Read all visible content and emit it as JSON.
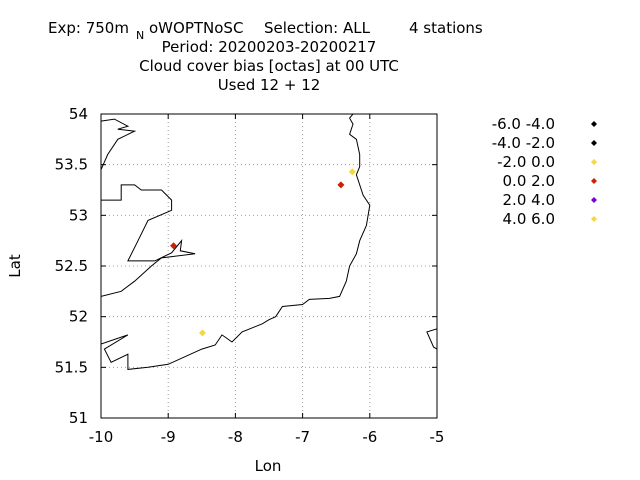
{
  "chart_data": {
    "type": "scatter",
    "title": {
      "exp_prefix": "Exp: 750m",
      "exp_subscript": "N",
      "exp_suffix": "oWOPTNoSC",
      "selection": "Selection: ALL",
      "stations": "4 stations",
      "period": "Period: 20200203-20200217",
      "variable": "Cloud cover bias [octas] at  00 UTC",
      "used": "Used  12 + 12"
    },
    "xlabel": "Lon",
    "ylabel": "Lat",
    "xlim": [
      -10,
      -5
    ],
    "ylim": [
      51,
      54
    ],
    "grid": true,
    "xticks": [
      -10,
      -9,
      -8,
      -7,
      -6,
      -5
    ],
    "xtick_labels": [
      "-10",
      "-9",
      "-8",
      "-7",
      "-6",
      "-5"
    ],
    "yticks": [
      51,
      51.5,
      52,
      52.5,
      53,
      53.5,
      54
    ],
    "ytick_labels": [
      "51",
      "51.5",
      "52",
      "52.5",
      "53",
      "53.5",
      "54"
    ],
    "legend_position": "right",
    "legend": [
      {
        "label": "-6.0 -4.0",
        "color": "#000000"
      },
      {
        "label": "-4.0 -2.0",
        "color": "#000000"
      },
      {
        "label": "-2.0 0.0",
        "color": "#f5d742"
      },
      {
        "label": "0.0 2.0",
        "color": "#cc2200"
      },
      {
        "label": "2.0 4.0",
        "color": "#7b00d4"
      },
      {
        "label": "4.0 6.0",
        "color": "#f5d742"
      }
    ],
    "points": [
      {
        "lon": -8.92,
        "lat": 52.7,
        "bin": "0.0 2.0",
        "color": "#cc2200"
      },
      {
        "lon": -6.43,
        "lat": 53.3,
        "bin": "0.0 2.0",
        "color": "#cc2200"
      },
      {
        "lon": -6.26,
        "lat": 53.43,
        "bin": "-2.0 0.0",
        "color": "#f5d742"
      },
      {
        "lon": -8.49,
        "lat": 51.84,
        "bin": "-2.0 0.0",
        "color": "#f5d742"
      }
    ],
    "coastlines": [
      [
        [
          -10,
          53.93
        ],
        [
          -9.8,
          53.95
        ],
        [
          -9.6,
          53.88
        ],
        [
          -9.75,
          53.85
        ],
        [
          -9.5,
          53.83
        ],
        [
          -9.75,
          53.75
        ],
        [
          -9.9,
          53.6
        ],
        [
          -10,
          53.45
        ]
      ],
      [
        [
          -10,
          53.15
        ],
        [
          -9.7,
          53.15
        ],
        [
          -9.7,
          53.3
        ],
        [
          -9.5,
          53.3
        ],
        [
          -9.4,
          53.25
        ],
        [
          -9.1,
          53.25
        ],
        [
          -8.95,
          53.15
        ],
        [
          -8.95,
          53.05
        ],
        [
          -9.3,
          52.95
        ],
        [
          -9.45,
          52.75
        ],
        [
          -9.6,
          52.55
        ],
        [
          -9.2,
          52.55
        ],
        [
          -8.95,
          52.63
        ],
        [
          -8.8,
          52.75
        ],
        [
          -8.82,
          52.65
        ],
        [
          -8.6,
          52.62
        ],
        [
          -9.1,
          52.58
        ],
        [
          -9.25,
          52.5
        ],
        [
          -9.5,
          52.35
        ],
        [
          -9.7,
          52.25
        ],
        [
          -10,
          52.2
        ]
      ],
      [
        [
          -10,
          51.73
        ],
        [
          -9.6,
          51.82
        ],
        [
          -9.95,
          51.68
        ],
        [
          -9.85,
          51.55
        ],
        [
          -9.6,
          51.63
        ],
        [
          -9.6,
          51.48
        ],
        [
          -9.3,
          51.5
        ],
        [
          -9.0,
          51.53
        ],
        [
          -8.5,
          51.68
        ],
        [
          -8.3,
          51.72
        ],
        [
          -8.2,
          51.82
        ],
        [
          -8.05,
          51.75
        ],
        [
          -7.9,
          51.85
        ],
        [
          -7.6,
          51.93
        ],
        [
          -7.5,
          51.97
        ],
        [
          -7.4,
          52.0
        ],
        [
          -7.3,
          52.1
        ],
        [
          -7.0,
          52.12
        ],
        [
          -6.9,
          52.17
        ],
        [
          -6.6,
          52.18
        ],
        [
          -6.45,
          52.2
        ],
        [
          -6.35,
          52.35
        ],
        [
          -6.3,
          52.5
        ],
        [
          -6.2,
          52.62
        ],
        [
          -6.15,
          52.75
        ],
        [
          -6.05,
          52.9
        ],
        [
          -6.0,
          53.1
        ],
        [
          -6.1,
          53.2
        ],
        [
          -6.2,
          53.4
        ],
        [
          -6.15,
          53.48
        ],
        [
          -6.15,
          53.6
        ],
        [
          -6.2,
          53.75
        ],
        [
          -6.3,
          53.8
        ],
        [
          -6.25,
          53.9
        ],
        [
          -6.3,
          53.96
        ],
        [
          -6.25,
          54.0
        ]
      ],
      [
        [
          -5,
          51.88
        ],
        [
          -5.15,
          51.85
        ],
        [
          -5.05,
          51.7
        ],
        [
          -5,
          51.68
        ]
      ]
    ]
  }
}
